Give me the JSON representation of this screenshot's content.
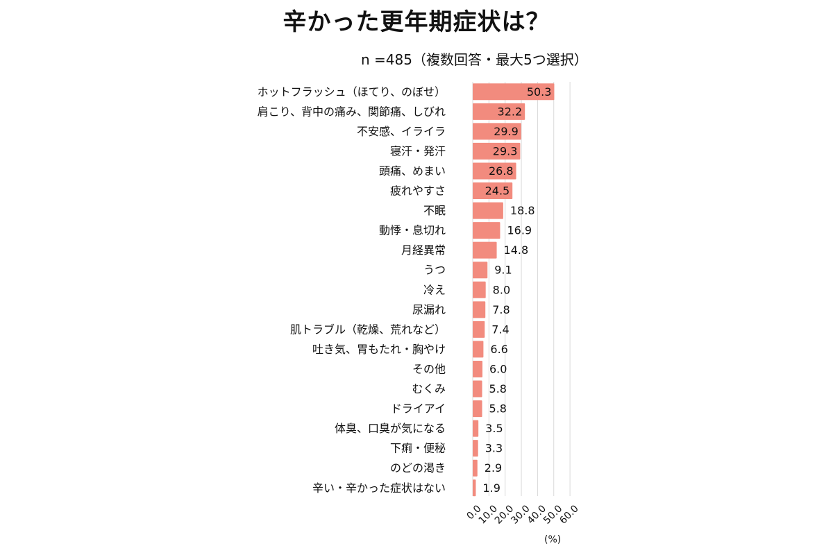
{
  "chart_data": {
    "type": "bar",
    "orientation": "horizontal",
    "title": "辛かった更年期症状は？",
    "subtitle": "n =485（複数回答・最大5つ選択）",
    "xlabel": "(%)",
    "ylabel": "",
    "xlim": [
      0,
      60
    ],
    "xticks": [
      "0.0",
      "10.0",
      "20.0",
      "30.0",
      "40.0",
      "50.0",
      "60.0"
    ],
    "bar_color": "#f28b7e",
    "categories": [
      "ホットフラッシュ（ほてり、のぼせ）",
      "肩こり、背中の痛み、関節痛、しびれ",
      "不安感、イライラ",
      "寝汗・発汗",
      "頭痛、めまい",
      "疲れやすさ",
      "不眠",
      "動悸・息切れ",
      "月経異常",
      "うつ",
      "冷え",
      "尿漏れ",
      "肌トラブル（乾燥、荒れなど）",
      "吐き気、胃もたれ・胸やけ",
      "その他",
      "むくみ",
      "ドライアイ",
      "体臭、口臭が気になる",
      "下痢・便秘",
      "のどの渇き",
      "辛い・辛かった症状はない"
    ],
    "values": [
      50.3,
      32.2,
      29.9,
      29.3,
      26.8,
      24.5,
      18.8,
      16.9,
      14.8,
      9.1,
      8.0,
      7.8,
      7.4,
      6.6,
      6.0,
      5.8,
      5.8,
      3.5,
      3.3,
      2.9,
      1.9
    ],
    "value_labels": [
      "50.3",
      "32.2",
      "29.9",
      "29.3",
      "26.8",
      "24.5",
      "18.8",
      "16.9",
      "14.8",
      "9.1",
      "8.0",
      "7.8",
      "7.4",
      "6.6",
      "6.0",
      "5.8",
      "5.8",
      "3.5",
      "3.3",
      "2.9",
      "1.9"
    ],
    "grid": true
  }
}
